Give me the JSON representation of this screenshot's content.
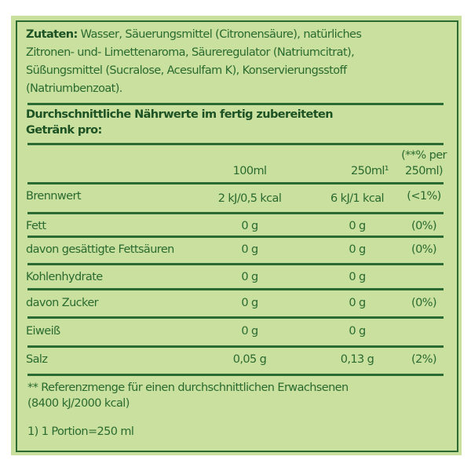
{
  "ingredients": {
    "label": "Zutaten:",
    "lines": [
      "Wasser, Säuerungsmittel (Citronensäure), natürliches",
      "Zitronen- und- Limettenaroma, Säureregulator (Natriumcitrat),",
      "Süßungsmittel (Sucralose, Acesulfam K), Konservierungsstoff",
      "(Natriumbenzoat)."
    ]
  },
  "nutrition": {
    "title_lines": [
      "Durchschnittliche Nährwerte im fertig zubereiteten",
      "Getränk pro:"
    ],
    "headers": [
      "100ml",
      "250ml¹",
      "(**% per",
      "250ml)"
    ],
    "rows": [
      {
        "name": "Brennwert",
        "v100": "2 kJ/0,5 kcal",
        "v250": "6 kJ/1 kcal",
        "pct": "(<1%)"
      },
      {
        "name": "Fett",
        "v100": "0 g",
        "v250": "0 g",
        "pct": "(0%)"
      },
      {
        "name": "davon gesättigte Fettsäuren",
        "v100": "0 g",
        "v250": "0 g",
        "pct": "(0%)"
      },
      {
        "name": "Kohlenhydrate",
        "v100": "0 g",
        "v250": "0 g",
        "pct": ""
      },
      {
        "name": "davon Zucker",
        "v100": "0 g",
        "v250": "0 g",
        "pct": "(0%)"
      },
      {
        "name": "Eiweiß",
        "v100": "0 g",
        "v250": "0 g",
        "pct": ""
      },
      {
        "name": "Salz",
        "v100": "0,05 g",
        "v250": "0,13 g",
        "pct": "(2%)"
      }
    ]
  },
  "footnotes": [
    "** Referenzmenge für einen durchschnittlichen Erwachsenen",
    "(8400 kJ/2000 kcal)",
    "1) 1 Portion=250 ml"
  ],
  "colors": {
    "background": "#c9e09e",
    "text": "#2a6a30"
  }
}
